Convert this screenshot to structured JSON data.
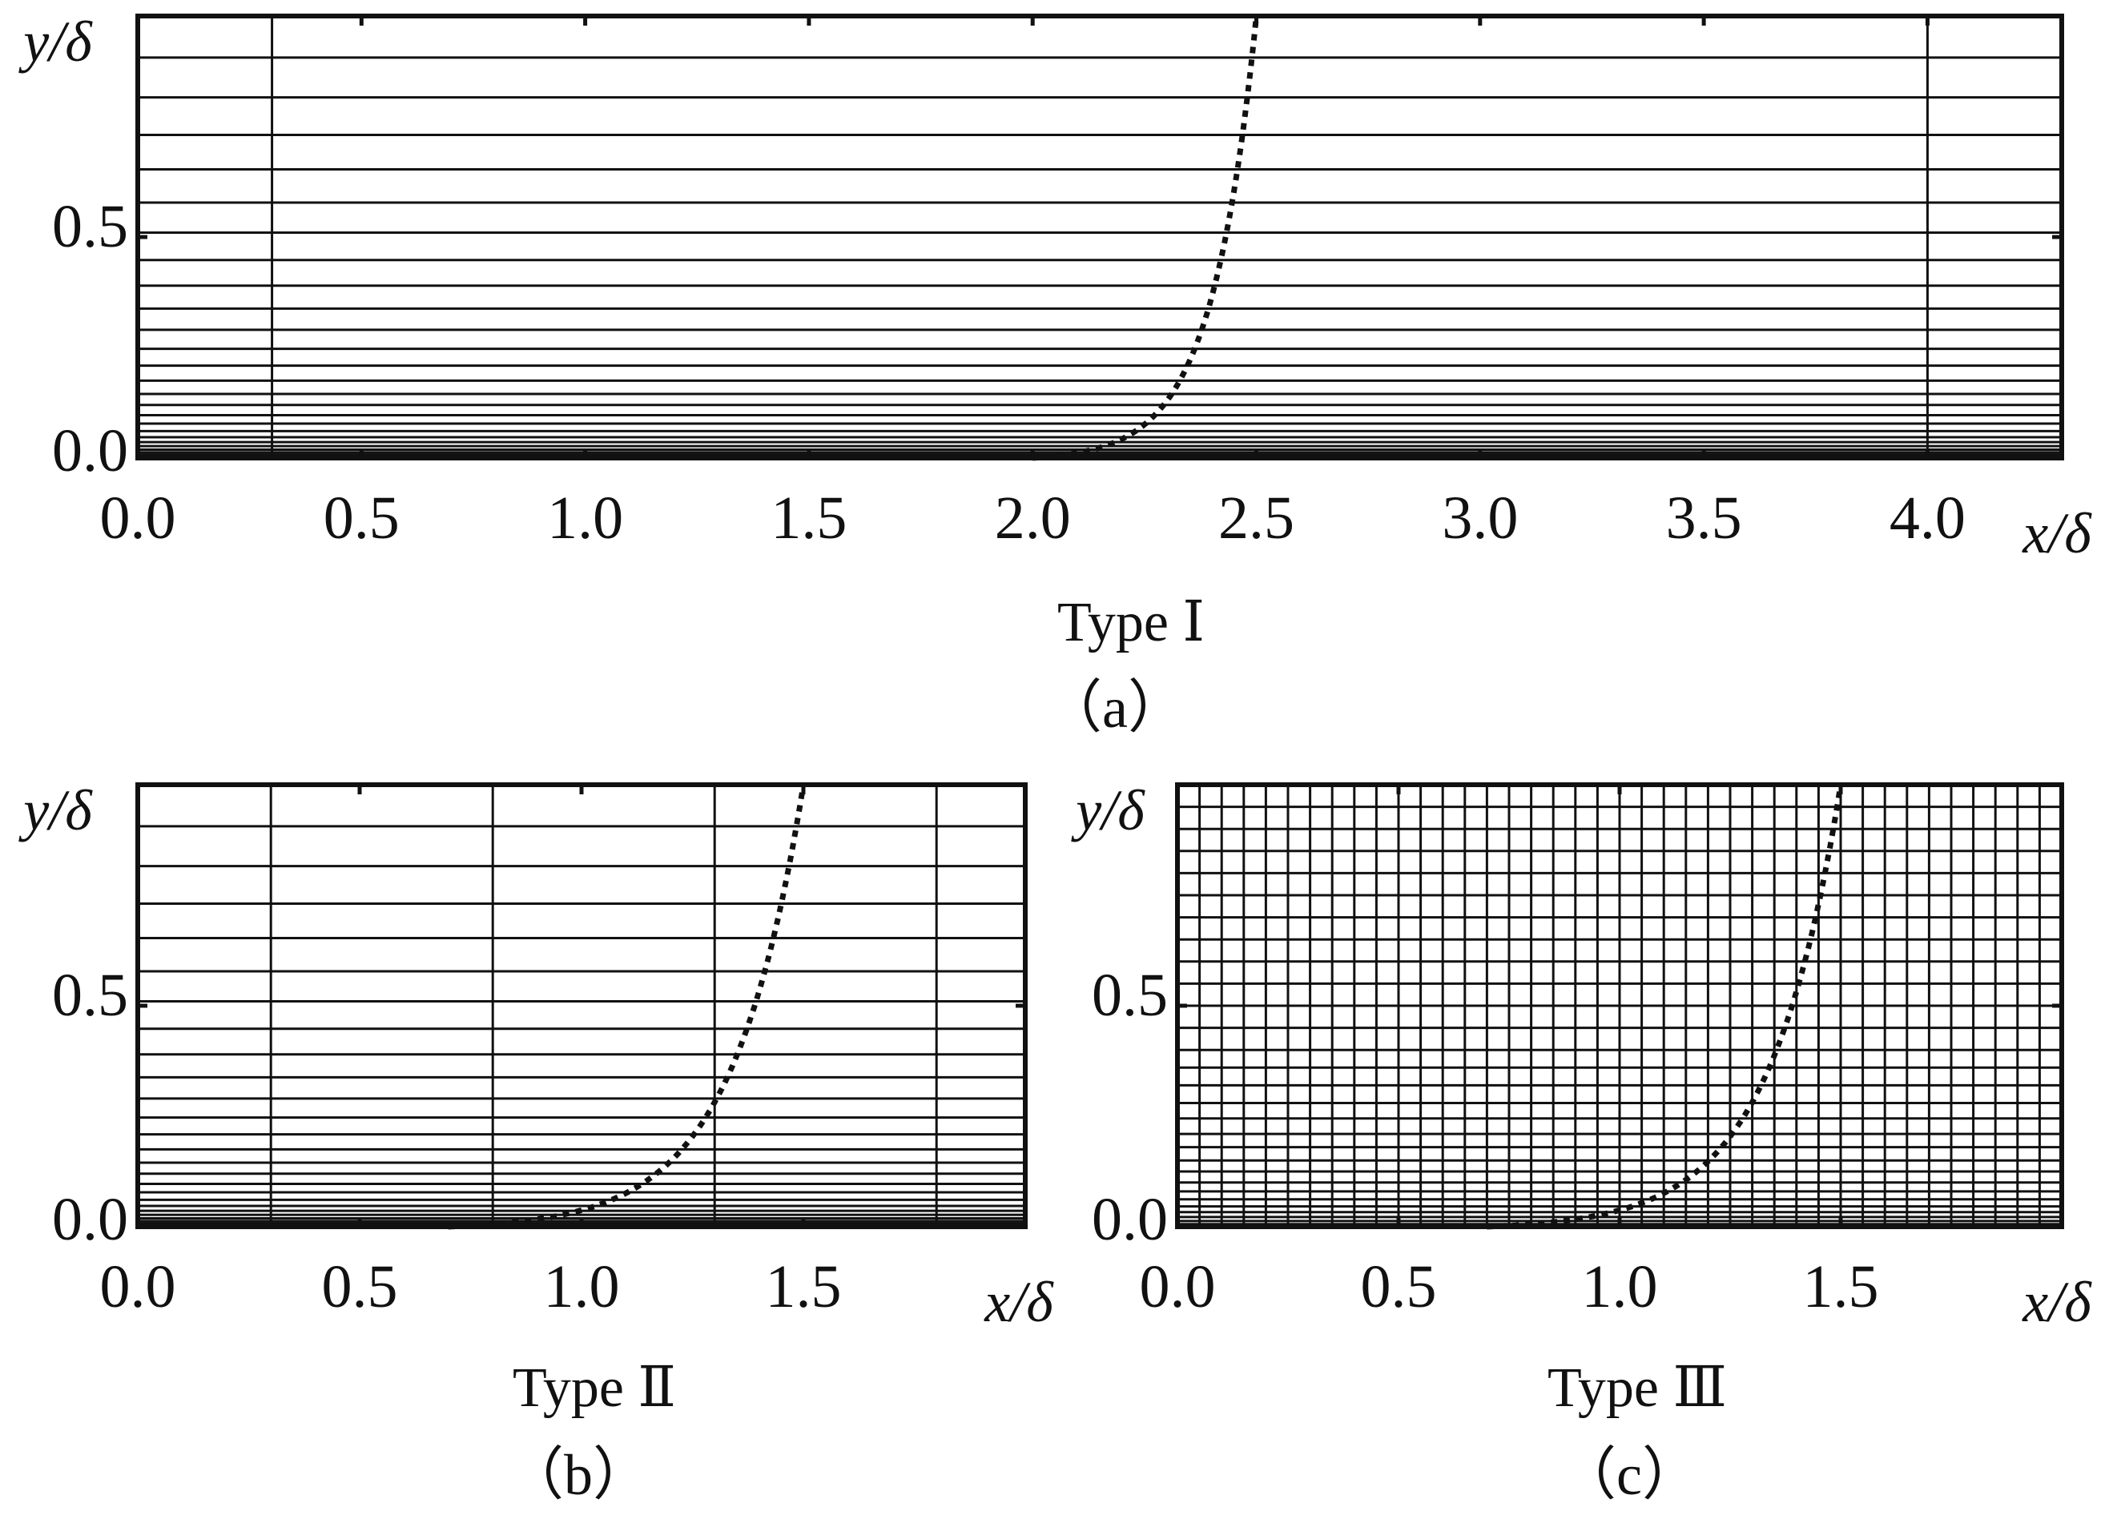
{
  "chart_data": [
    {
      "type": "mesh",
      "panel": "a",
      "caption": "（a）",
      "type_label": "Type Ⅰ",
      "xlabel": "x/δ",
      "ylabel": "y/δ",
      "xlim": [
        0.0,
        4.3
      ],
      "ylim": [
        0.0,
        1.0
      ],
      "xticks": [
        "0.0",
        "0.5",
        "1.0",
        "1.5",
        "2.0",
        "2.5",
        "3.0",
        "3.5",
        "4.0"
      ],
      "xtick_values": [
        0.0,
        0.5,
        1.0,
        1.5,
        2.0,
        2.5,
        3.0,
        3.5,
        4.0
      ],
      "yticks": [
        "0.0",
        "0.5"
      ],
      "ytick_values": [
        0.0,
        0.5
      ],
      "vertical_mesh_lines": [
        0.3,
        4.0
      ],
      "horizontal_mesh_lines": [
        1.0,
        0.906,
        0.816,
        0.731,
        0.653,
        0.578,
        0.51,
        0.448,
        0.39,
        0.338,
        0.29,
        0.247,
        0.209,
        0.175,
        0.145,
        0.12,
        0.097,
        0.078,
        0.061,
        0.047,
        0.036,
        0.027,
        0.019,
        0.013,
        0.008,
        0.005,
        0.002,
        0.0
      ],
      "dotted_curve": {
        "x0": 2.0,
        "x1": 2.5,
        "shape": "exponential"
      }
    },
    {
      "type": "mesh",
      "panel": "b",
      "caption": "（b）",
      "type_label": "Type Ⅱ",
      "xlabel": "x/δ",
      "ylabel": "y/δ",
      "xlim": [
        0.0,
        2.0
      ],
      "ylim": [
        0.0,
        1.0
      ],
      "xticks": [
        "0.0",
        "0.5",
        "1.0",
        "1.5"
      ],
      "xtick_values": [
        0.0,
        0.5,
        1.0,
        1.5
      ],
      "yticks": [
        "0.0",
        "0.5"
      ],
      "ytick_values": [
        0.0,
        0.5
      ],
      "vertical_mesh_lines": [
        0.3,
        0.8,
        1.3,
        1.8
      ],
      "horizontal_mesh_lines": [
        1.0,
        0.906,
        0.816,
        0.731,
        0.653,
        0.578,
        0.51,
        0.448,
        0.39,
        0.338,
        0.29,
        0.247,
        0.209,
        0.175,
        0.145,
        0.12,
        0.097,
        0.078,
        0.061,
        0.047,
        0.036,
        0.027,
        0.019,
        0.013,
        0.008,
        0.005,
        0.002,
        0.0
      ],
      "dotted_curve": {
        "x0": 0.7,
        "x1": 1.5,
        "shape": "exponential"
      }
    },
    {
      "type": "mesh",
      "panel": "c",
      "caption": "（c）",
      "type_label": "Type Ⅲ",
      "xlabel": "x/δ",
      "ylabel": "y/δ",
      "xlim": [
        0.0,
        2.0
      ],
      "ylim": [
        0.0,
        1.0
      ],
      "xticks": [
        "0.0",
        "0.5",
        "1.0",
        "1.5"
      ],
      "xtick_values": [
        0.0,
        0.5,
        1.0,
        1.5
      ],
      "yticks": [
        "0.0",
        "0.5"
      ],
      "ytick_values": [
        0.0,
        0.5
      ],
      "vertical_mesh_lines": [
        0.05,
        0.1,
        0.15,
        0.2,
        0.25,
        0.3,
        0.35,
        0.4,
        0.45,
        0.5,
        0.55,
        0.6,
        0.65,
        0.7,
        0.75,
        0.8,
        0.85,
        0.9,
        0.95,
        1.0,
        1.05,
        1.1,
        1.15,
        1.2,
        1.25,
        1.3,
        1.35,
        1.4,
        1.45,
        1.5,
        1.55,
        1.6,
        1.65,
        1.7,
        1.75,
        1.8,
        1.85,
        1.9,
        1.95
      ],
      "horizontal_mesh_lines": [
        1.0,
        0.95,
        0.9,
        0.85,
        0.8,
        0.75,
        0.7,
        0.65,
        0.6,
        0.55,
        0.5,
        0.45,
        0.4,
        0.36,
        0.32,
        0.28,
        0.245,
        0.21,
        0.18,
        0.15,
        0.125,
        0.1,
        0.08,
        0.062,
        0.046,
        0.033,
        0.022,
        0.013,
        0.006,
        0.0
      ],
      "dotted_curve": {
        "x0": 0.7,
        "x1": 1.5,
        "shape": "exponential"
      }
    }
  ]
}
